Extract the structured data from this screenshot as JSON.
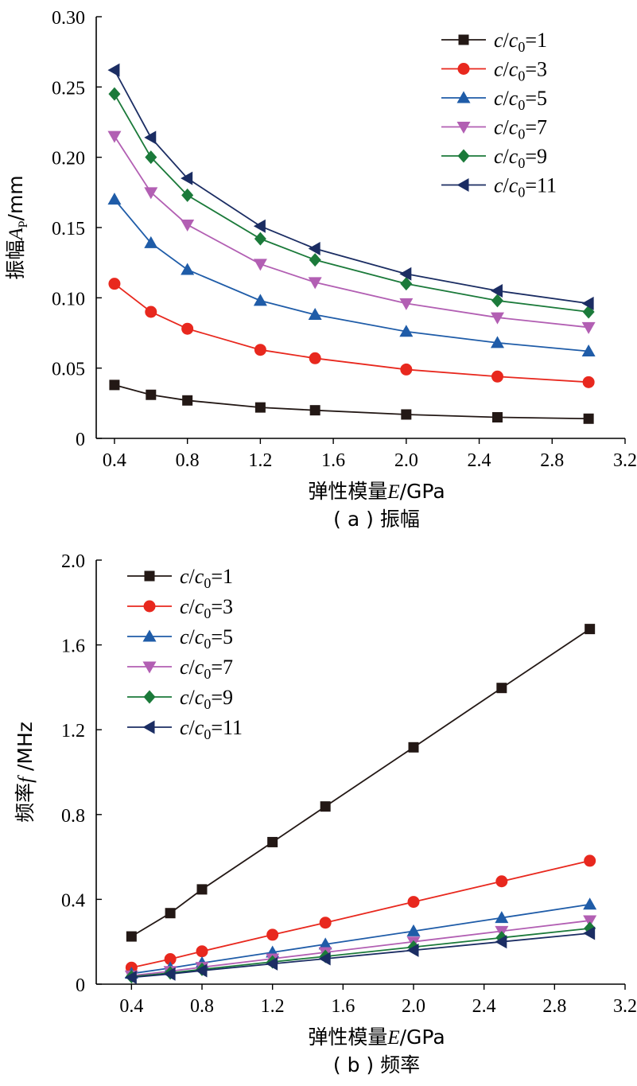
{
  "chart_data": [
    {
      "type": "line",
      "caption": "( a ) 振幅",
      "xlabel": "弹性模量E/GPa",
      "ylabel": "振幅A_P/mm",
      "xlim": [
        0.3,
        3.2
      ],
      "ylim": [
        0,
        0.3
      ],
      "xticks": [
        "0.4",
        "0.8",
        "1.2",
        "1.6",
        "2.0",
        "2.4",
        "2.8",
        "3.2"
      ],
      "yticks": [
        "0",
        "0.05",
        "0.10",
        "0.15",
        "0.20",
        "0.25",
        "0.30"
      ],
      "legend_position": "top-right",
      "x": [
        0.4,
        0.6,
        0.8,
        1.2,
        1.5,
        2.0,
        2.5,
        3.0
      ],
      "series": [
        {
          "name": "c/c0=1",
          "color": "#231815",
          "marker": "square",
          "values": [
            0.038,
            0.031,
            0.027,
            0.022,
            0.02,
            0.017,
            0.015,
            0.014
          ]
        },
        {
          "name": "c/c0=3",
          "color": "#e8281e",
          "marker": "circle",
          "values": [
            0.11,
            0.09,
            0.078,
            0.063,
            0.057,
            0.049,
            0.044,
            0.04
          ]
        },
        {
          "name": "c/c0=5",
          "color": "#1f5ca8",
          "marker": "triangle-up",
          "values": [
            0.17,
            0.139,
            0.12,
            0.098,
            0.088,
            0.076,
            0.068,
            0.062
          ]
        },
        {
          "name": "c/c0=7",
          "color": "#b25fb3",
          "marker": "triangle-down",
          "values": [
            0.215,
            0.175,
            0.152,
            0.124,
            0.111,
            0.096,
            0.086,
            0.079
          ]
        },
        {
          "name": "c/c0=9",
          "color": "#1b7a3a",
          "marker": "diamond",
          "values": [
            0.245,
            0.2,
            0.173,
            0.142,
            0.127,
            0.11,
            0.098,
            0.09
          ]
        },
        {
          "name": "c/c0=11",
          "color": "#1b2d63",
          "marker": "triangle-left",
          "values": [
            0.262,
            0.214,
            0.185,
            0.151,
            0.135,
            0.117,
            0.105,
            0.096
          ]
        }
      ]
    },
    {
      "type": "line",
      "caption": "( b ) 频率",
      "xlabel": "弹性模量E/GPa",
      "ylabel": "频率f /MHz",
      "xlim": [
        0.2,
        3.2
      ],
      "ylim": [
        0,
        2.0
      ],
      "xticks": [
        "0.4",
        "0.8",
        "1.2",
        "1.6",
        "2.0",
        "2.4",
        "2.8",
        "3.2"
      ],
      "yticks": [
        "0",
        "0.4",
        "0.8",
        "1.2",
        "1.6",
        "2.0"
      ],
      "legend_position": "top-left",
      "x": [
        0.4,
        0.62,
        0.8,
        1.2,
        1.5,
        2.0,
        2.5,
        3.0
      ],
      "series": [
        {
          "name": "c/c0=1",
          "color": "#231815",
          "marker": "square",
          "values": [
            0.225,
            0.335,
            0.447,
            0.67,
            0.838,
            1.117,
            1.397,
            1.675
          ]
        },
        {
          "name": "c/c0=3",
          "color": "#e8281e",
          "marker": "circle",
          "values": [
            0.078,
            0.118,
            0.155,
            0.233,
            0.29,
            0.388,
            0.485,
            0.582
          ]
        },
        {
          "name": "c/c0=5",
          "color": "#1f5ca8",
          "marker": "triangle-up",
          "values": [
            0.05,
            0.076,
            0.1,
            0.15,
            0.188,
            0.25,
            0.313,
            0.376
          ]
        },
        {
          "name": "c/c0=7",
          "color": "#b25fb3",
          "marker": "triangle-down",
          "values": [
            0.04,
            0.061,
            0.08,
            0.12,
            0.15,
            0.2,
            0.25,
            0.3
          ]
        },
        {
          "name": "c/c0=9",
          "color": "#1b7a3a",
          "marker": "diamond",
          "values": [
            0.035,
            0.053,
            0.07,
            0.105,
            0.131,
            0.175,
            0.219,
            0.263
          ]
        },
        {
          "name": "c/c0=11",
          "color": "#1b2d63",
          "marker": "triangle-left",
          "values": [
            0.032,
            0.048,
            0.064,
            0.096,
            0.12,
            0.16,
            0.2,
            0.24
          ]
        }
      ]
    }
  ]
}
